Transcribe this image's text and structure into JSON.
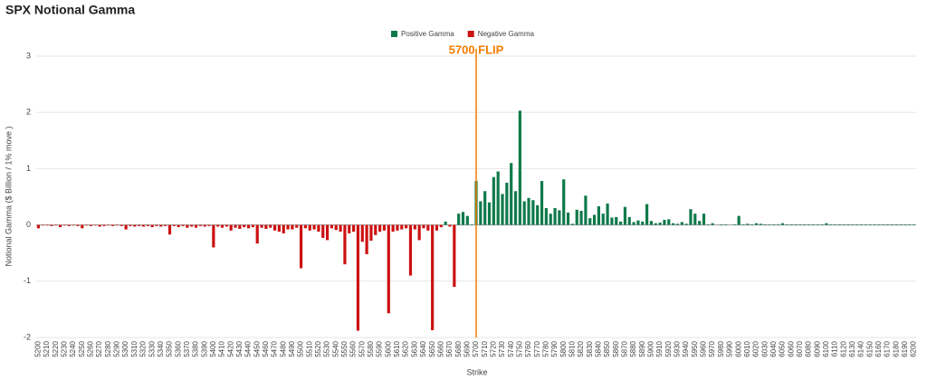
{
  "chart_data": {
    "type": "bar",
    "title": "SPX Notional Gamma",
    "x_label": "Strike",
    "y_label": "Notional Gamma ($ Billion / 1% move )",
    "categories": [
      5200,
      null,
      5210,
      null,
      5220,
      null,
      5230,
      null,
      5240,
      null,
      5250,
      null,
      5260,
      null,
      5270,
      null,
      5280,
      null,
      5290,
      null,
      5300,
      null,
      5310,
      null,
      5320,
      null,
      5330,
      null,
      5340,
      null,
      5350,
      null,
      5360,
      null,
      5370,
      null,
      5380,
      null,
      5390,
      null,
      5400,
      null,
      5410,
      null,
      5420,
      null,
      5430,
      null,
      5440,
      null,
      5450,
      null,
      5460,
      null,
      5470,
      null,
      5480,
      null,
      5490,
      null,
      5500,
      null,
      5510,
      null,
      5520,
      null,
      5530,
      null,
      5540,
      null,
      5550,
      null,
      5560,
      null,
      5570,
      null,
      5580,
      null,
      5590,
      null,
      5600,
      null,
      5610,
      null,
      5620,
      null,
      5630,
      null,
      5640,
      null,
      5650,
      null,
      5660,
      null,
      5670,
      null,
      5680,
      null,
      5690,
      null,
      5700,
      null,
      5710,
      null,
      5720,
      null,
      5730,
      null,
      5740,
      null,
      5750,
      null,
      5760,
      null,
      5770,
      null,
      5780,
      null,
      5790,
      null,
      5800,
      null,
      5810,
      null,
      5820,
      null,
      5830,
      null,
      5840,
      null,
      5850,
      null,
      5860,
      null,
      5870,
      null,
      5880,
      null,
      5890,
      null,
      5900,
      null,
      5910,
      null,
      5920,
      null,
      5930,
      null,
      5940,
      null,
      5950,
      null,
      5960,
      null,
      5970,
      null,
      5980,
      null,
      5990,
      null,
      6000,
      null,
      6010,
      null,
      6020,
      null,
      6030,
      null,
      6040,
      null,
      6050,
      null,
      6060,
      null,
      6070,
      null,
      6080,
      null,
      6090,
      null,
      6100,
      null,
      6110,
      null,
      6120,
      null,
      6130,
      null,
      6140,
      null,
      6150,
      null,
      6160,
      null,
      6170,
      null,
      6180,
      null,
      6190,
      null,
      6200
    ],
    "series": [
      {
        "name": "Positive Gamma",
        "color": "#0e7a4a",
        "values": [
          null,
          null,
          null,
          null,
          null,
          null,
          null,
          null,
          null,
          null,
          null,
          null,
          null,
          null,
          null,
          null,
          null,
          null,
          null,
          null,
          null,
          null,
          null,
          null,
          null,
          null,
          null,
          null,
          null,
          null,
          null,
          null,
          null,
          null,
          null,
          null,
          null,
          null,
          null,
          null,
          null,
          null,
          null,
          null,
          null,
          null,
          null,
          null,
          null,
          null,
          null,
          null,
          null,
          null,
          null,
          null,
          null,
          null,
          null,
          null,
          null,
          null,
          null,
          null,
          null,
          null,
          null,
          null,
          null,
          null,
          null,
          null,
          null,
          null,
          null,
          null,
          null,
          null,
          null,
          null,
          null,
          null,
          null,
          null,
          null,
          null,
          null,
          null,
          null,
          null,
          null,
          null,
          null,
          0.06,
          null,
          null,
          0.2,
          0.23,
          0.16,
          0.01,
          0.78,
          0.42,
          0.6,
          0.4,
          0.85,
          0.95,
          0.55,
          0.75,
          1.1,
          0.6,
          2.03,
          0.42,
          0.48,
          0.44,
          0.35,
          0.78,
          0.3,
          0.2,
          0.3,
          0.26,
          0.81,
          0.22,
          0.02,
          0.27,
          0.25,
          0.52,
          0.12,
          0.18,
          0.33,
          0.2,
          0.38,
          0.13,
          0.14,
          0.06,
          0.32,
          0.14,
          0.05,
          0.08,
          0.06,
          0.37,
          0.07,
          0.03,
          0.04,
          0.09,
          0.1,
          0.03,
          0.02,
          0.05,
          0.02,
          0.28,
          0.2,
          0.07,
          0.2,
          0.01,
          0.03,
          0,
          0.01,
          0.01,
          0,
          0.01,
          0.16,
          0.01,
          0.02,
          0.01,
          0.03,
          0.02,
          0.01,
          0.01,
          0.01,
          0.01,
          0.03,
          0.01,
          0.01,
          0.01,
          0.01,
          0.01,
          0.01,
          0.01,
          0.01,
          0.01,
          0.03,
          0.01,
          0.01,
          0.01,
          0.01,
          0.01,
          0.01,
          0.01,
          0.01,
          0.01,
          0.01,
          0.01,
          0.01,
          0.01,
          0.01,
          0.01,
          0.01,
          0.01,
          0.01,
          0.01,
          0.01
        ]
      },
      {
        "name": "Negative Gamma",
        "color": "#cc1111",
        "values": [
          -0.06,
          -0.01,
          -0.01,
          -0.02,
          -0.01,
          -0.04,
          -0.01,
          -0.02,
          -0.01,
          -0.02,
          -0.06,
          -0.01,
          -0.02,
          -0.01,
          -0.03,
          -0.02,
          -0.01,
          -0.02,
          -0.01,
          -0.02,
          -0.08,
          -0.02,
          -0.03,
          -0.02,
          -0.03,
          -0.02,
          -0.04,
          -0.02,
          -0.03,
          -0.02,
          -0.17,
          -0.02,
          -0.04,
          -0.02,
          -0.05,
          -0.03,
          -0.05,
          -0.02,
          -0.03,
          -0.02,
          -0.4,
          -0.03,
          -0.05,
          -0.03,
          -0.1,
          -0.05,
          -0.07,
          -0.04,
          -0.06,
          -0.04,
          -0.33,
          -0.05,
          -0.07,
          -0.05,
          -0.1,
          -0.12,
          -0.15,
          -0.08,
          -0.08,
          -0.05,
          -0.77,
          -0.06,
          -0.1,
          -0.08,
          -0.12,
          -0.23,
          -0.27,
          -0.06,
          -0.09,
          -0.12,
          -0.7,
          -0.15,
          -0.12,
          -1.88,
          -0.3,
          -0.52,
          -0.28,
          -0.18,
          -0.12,
          -0.1,
          -1.57,
          -0.12,
          -0.1,
          -0.08,
          -0.06,
          -0.9,
          -0.08,
          -0.27,
          -0.06,
          -0.1,
          -1.87,
          -0.1,
          -0.04,
          null,
          -0.03,
          -1.1,
          null,
          null,
          null,
          null,
          null,
          null,
          null,
          null,
          null,
          null,
          null,
          null,
          null,
          null,
          null,
          null,
          null,
          null,
          null,
          null,
          null,
          null,
          null,
          null,
          null,
          null,
          null,
          null,
          null,
          null,
          null,
          null,
          null,
          null,
          null,
          null,
          null,
          null,
          null,
          null,
          null,
          null,
          null,
          null,
          null,
          null,
          null,
          null,
          null,
          null,
          null,
          null,
          null,
          null,
          null,
          null,
          null,
          null,
          null,
          null,
          null,
          null,
          null,
          null,
          null,
          null,
          null,
          null,
          null,
          null,
          null,
          null,
          null,
          null,
          null,
          null,
          null,
          null,
          null,
          null,
          null,
          null,
          null,
          null,
          null,
          null,
          null,
          null,
          null,
          null,
          null,
          null,
          null,
          null,
          null,
          null,
          null,
          null,
          null,
          null,
          null,
          null,
          null,
          null,
          null
        ]
      }
    ],
    "ylim": [
      -2,
      3
    ],
    "yticks": [
      -2,
      -1,
      0,
      1,
      2,
      3
    ],
    "grid": true,
    "legend": "top",
    "flip_line": {
      "label": "5700 FLIP",
      "category": 5700,
      "color": "#f57c00"
    }
  }
}
